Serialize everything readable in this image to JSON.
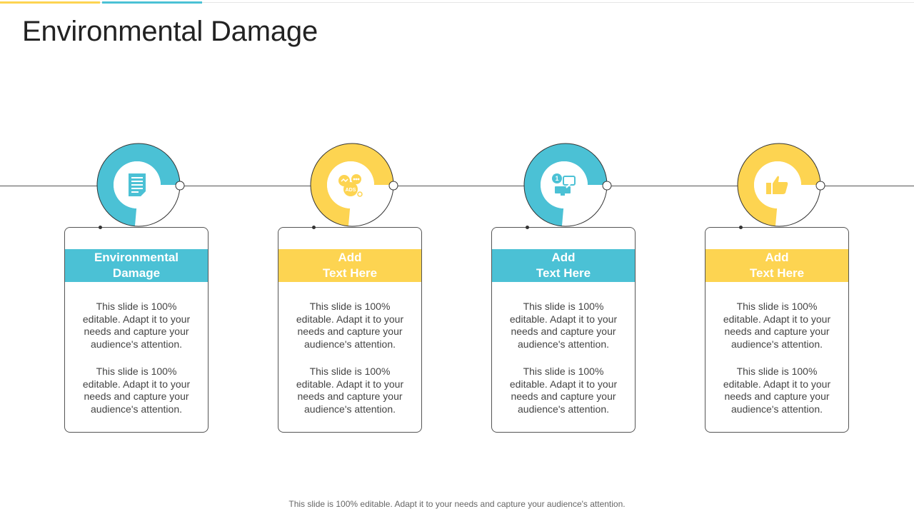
{
  "slide": {
    "title": "Environmental Damage",
    "footer": "This slide is 100% editable. Adapt it to your needs and capture your audience's attention."
  },
  "colors": {
    "teal": "#4BC1D5",
    "yellow": "#FDD451",
    "line": "#555555"
  },
  "steps": [
    {
      "color": "teal",
      "icon": "document-icon",
      "header": "Environmental\nDamage",
      "body": [
        "This slide is 100% editable. Adapt it to your needs and capture your audience's attention.",
        "This slide is 100% editable. Adapt it to your needs and capture your audience's attention."
      ]
    },
    {
      "color": "yellow",
      "icon": "ads-icon",
      "header": "Add\nText Here",
      "body": [
        "This slide is 100% editable. Adapt it to your needs and capture your audience's attention.",
        "This slide is 100% editable. Adapt it to your needs and capture your audience's attention."
      ]
    },
    {
      "color": "teal",
      "icon": "data-transfer-icon",
      "header": "Add\nText Here",
      "body": [
        "This slide is 100% editable. Adapt it to your needs and capture your audience's attention.",
        "This slide is 100% editable. Adapt it to your needs and capture your audience's attention."
      ]
    },
    {
      "color": "yellow",
      "icon": "thumbs-up-icon",
      "header": "Add\nText Here",
      "body": [
        "This slide is 100% editable. Adapt it to your needs and capture your audience's attention.",
        "This slide is 100% editable. Adapt it to your needs and capture your audience's attention."
      ]
    }
  ]
}
